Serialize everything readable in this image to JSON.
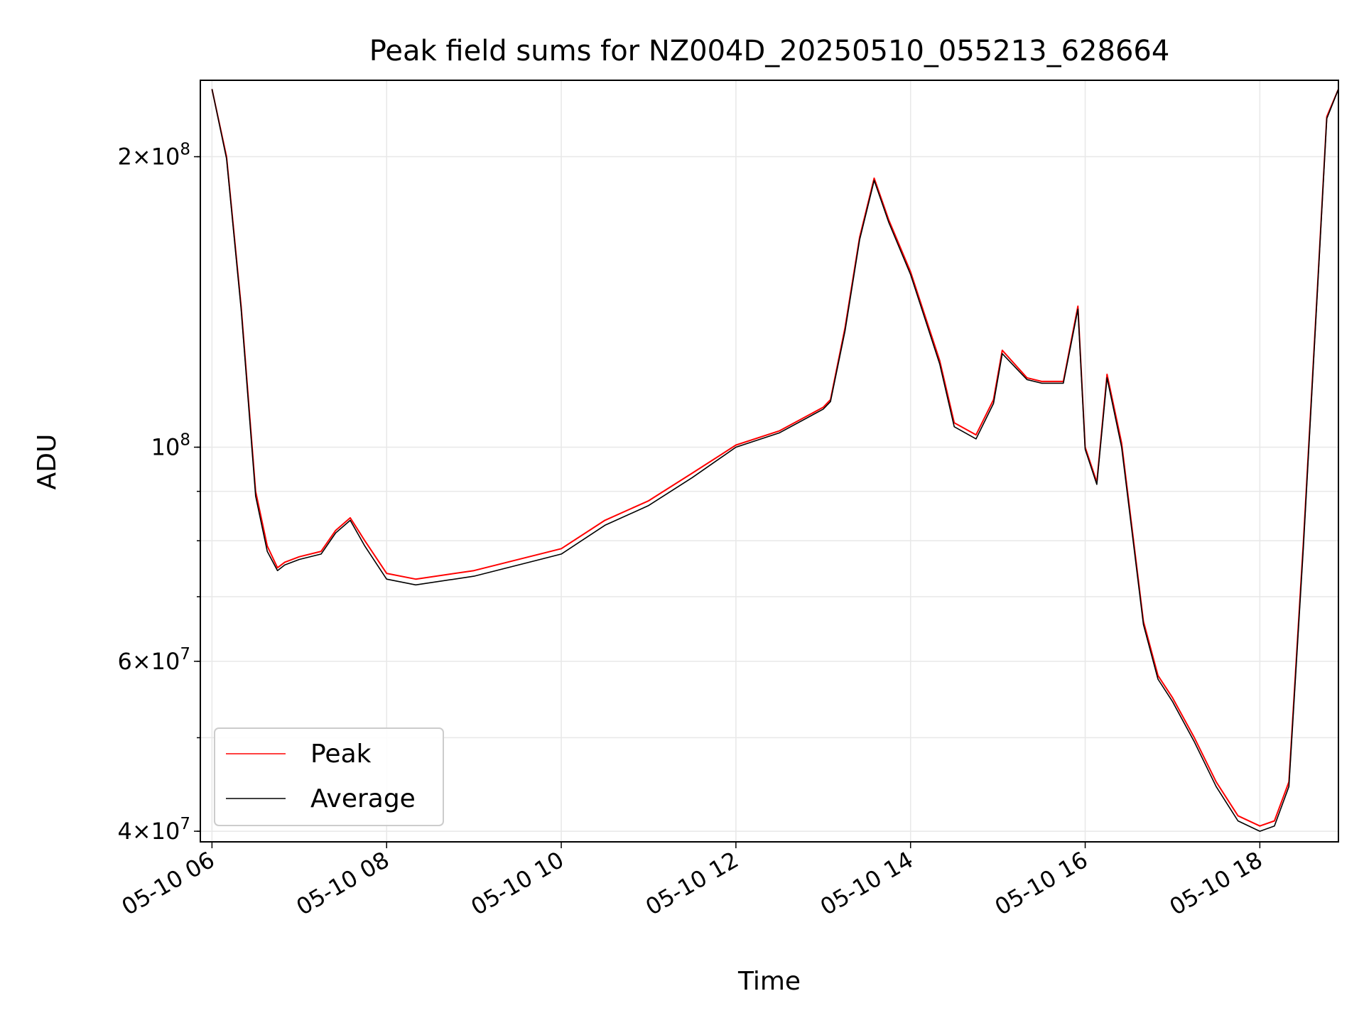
{
  "chart_data": {
    "type": "line",
    "title": "Peak field sums for NZ004D_20250510_055213_628664",
    "xlabel": "Time",
    "ylabel": "ADU",
    "x_ticks": [
      "05-10 06",
      "05-10 08",
      "05-10 10",
      "05-10 12",
      "05-10 14",
      "05-10 16",
      "05-10 18"
    ],
    "y_ticks": [
      {
        "value": 40000000,
        "mant": "4",
        "exp": "7"
      },
      {
        "value": 60000000,
        "mant": "6",
        "exp": "7"
      },
      {
        "value": 100000000,
        "mant": "",
        "exp": "8"
      },
      {
        "value": 200000000,
        "mant": "2",
        "exp": "8"
      }
    ],
    "y_scale": "log",
    "xlim": [
      "2025-05-10 05:52",
      "2025-05-10 18:54"
    ],
    "ylim": [
      39000000,
      240000000
    ],
    "grid": true,
    "legend_position": "lower left",
    "series": [
      {
        "name": "Peak",
        "color": "#ff0000",
        "x": [
          "2025-05-10 06:00",
          "2025-05-10 06:10",
          "2025-05-10 06:20",
          "2025-05-10 06:30",
          "2025-05-10 06:38",
          "2025-05-10 06:45",
          "2025-05-10 06:50",
          "2025-05-10 07:00",
          "2025-05-10 07:15",
          "2025-05-10 07:25",
          "2025-05-10 07:35",
          "2025-05-10 07:45",
          "2025-05-10 08:00",
          "2025-05-10 08:20",
          "2025-05-10 09:00",
          "2025-05-10 10:00",
          "2025-05-10 10:30",
          "2025-05-10 11:00",
          "2025-05-10 11:30",
          "2025-05-10 12:00",
          "2025-05-10 12:30",
          "2025-05-10 13:00",
          "2025-05-10 13:05",
          "2025-05-10 13:15",
          "2025-05-10 13:25",
          "2025-05-10 13:35",
          "2025-05-10 13:45",
          "2025-05-10 14:00",
          "2025-05-10 14:20",
          "2025-05-10 14:30",
          "2025-05-10 14:45",
          "2025-05-10 14:57",
          "2025-05-10 15:03",
          "2025-05-10 15:20",
          "2025-05-10 15:30",
          "2025-05-10 15:45",
          "2025-05-10 15:55",
          "2025-05-10 16:00",
          "2025-05-10 16:08",
          "2025-05-10 16:15",
          "2025-05-10 16:25",
          "2025-05-10 16:40",
          "2025-05-10 16:50",
          "2025-05-10 17:00",
          "2025-05-10 17:15",
          "2025-05-10 17:30",
          "2025-05-10 17:45",
          "2025-05-10 18:00",
          "2025-05-10 18:10",
          "2025-05-10 18:20",
          "2025-05-10 18:30",
          "2025-05-10 18:40",
          "2025-05-10 18:46",
          "2025-05-10 18:54"
        ],
        "y": [
          235000000,
          200000000,
          140000000,
          90000000,
          79000000,
          75000000,
          76000000,
          77000000,
          78000000,
          82000000,
          84500000,
          80000000,
          74000000,
          73000000,
          74500000,
          78500000,
          84000000,
          88000000,
          94000000,
          100500000,
          104000000,
          110000000,
          112000000,
          133000000,
          165000000,
          190000000,
          172000000,
          152000000,
          123000000,
          106000000,
          103000000,
          112000000,
          126000000,
          118000000,
          117000000,
          117000000,
          140000000,
          100000000,
          92000000,
          119000000,
          101000000,
          66000000,
          58000000,
          55000000,
          50000000,
          45000000,
          41500000,
          40500000,
          41000000,
          45000000,
          80000000,
          150000000,
          220000000,
          235000000
        ]
      },
      {
        "name": "Average",
        "color": "#000000",
        "x": [
          "2025-05-10 06:00",
          "2025-05-10 06:10",
          "2025-05-10 06:20",
          "2025-05-10 06:30",
          "2025-05-10 06:38",
          "2025-05-10 06:45",
          "2025-05-10 06:50",
          "2025-05-10 07:00",
          "2025-05-10 07:15",
          "2025-05-10 07:25",
          "2025-05-10 07:35",
          "2025-05-10 07:45",
          "2025-05-10 08:00",
          "2025-05-10 08:20",
          "2025-05-10 09:00",
          "2025-05-10 10:00",
          "2025-05-10 10:30",
          "2025-05-10 11:00",
          "2025-05-10 11:30",
          "2025-05-10 12:00",
          "2025-05-10 12:30",
          "2025-05-10 13:00",
          "2025-05-10 13:05",
          "2025-05-10 13:15",
          "2025-05-10 13:25",
          "2025-05-10 13:35",
          "2025-05-10 13:45",
          "2025-05-10 14:00",
          "2025-05-10 14:20",
          "2025-05-10 14:30",
          "2025-05-10 14:45",
          "2025-05-10 14:57",
          "2025-05-10 15:03",
          "2025-05-10 15:20",
          "2025-05-10 15:30",
          "2025-05-10 15:45",
          "2025-05-10 15:55",
          "2025-05-10 16:00",
          "2025-05-10 16:08",
          "2025-05-10 16:15",
          "2025-05-10 16:25",
          "2025-05-10 16:40",
          "2025-05-10 16:50",
          "2025-05-10 17:00",
          "2025-05-10 17:15",
          "2025-05-10 17:30",
          "2025-05-10 17:45",
          "2025-05-10 18:00",
          "2025-05-10 18:10",
          "2025-05-10 18:20",
          "2025-05-10 18:30",
          "2025-05-10 18:40",
          "2025-05-10 18:46",
          "2025-05-10 18:54"
        ],
        "y": [
          235000000,
          199000000,
          139000000,
          89000000,
          78000000,
          74500000,
          75500000,
          76500000,
          77500000,
          81500000,
          84000000,
          79000000,
          73000000,
          72000000,
          73500000,
          77500000,
          83000000,
          87000000,
          93000000,
          100000000,
          103500000,
          109500000,
          111500000,
          132000000,
          164000000,
          189000000,
          171000000,
          151000000,
          122000000,
          105000000,
          102000000,
          111000000,
          125000000,
          117500000,
          116500000,
          116500000,
          139000000,
          99500000,
          91500000,
          118000000,
          100000000,
          65500000,
          57500000,
          54500000,
          49500000,
          44500000,
          41000000,
          40000000,
          40500000,
          44500000,
          79000000,
          149000000,
          219000000,
          235000000
        ]
      }
    ]
  }
}
